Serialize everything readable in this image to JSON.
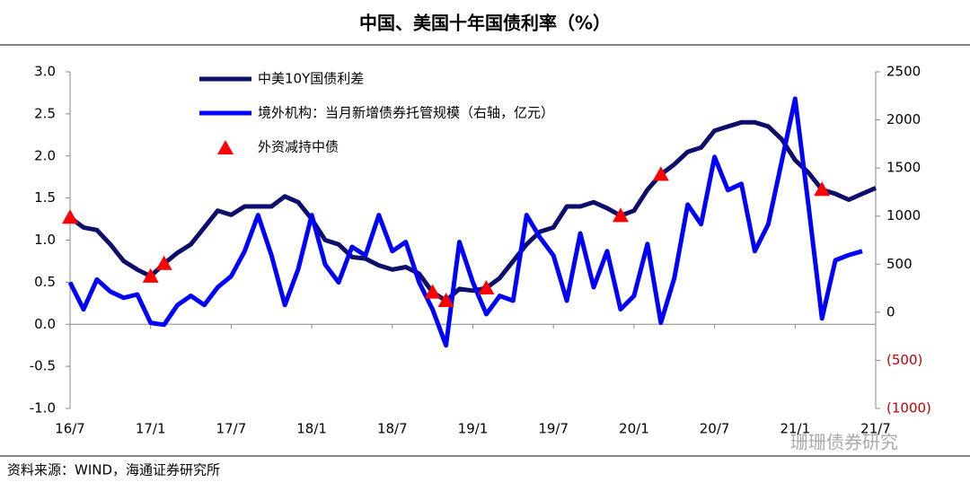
{
  "chart_data": {
    "type": "line",
    "title": "中国、美国十年国债利率（%）",
    "source": "资料来源：WIND，海通证券研究所",
    "watermark": "珊珊债券研究",
    "categories": [
      "16/7",
      null,
      null,
      null,
      null,
      null,
      "17/1",
      null,
      null,
      null,
      null,
      null,
      "17/7",
      null,
      null,
      null,
      null,
      null,
      "18/1",
      null,
      null,
      null,
      null,
      null,
      "18/7",
      null,
      null,
      null,
      null,
      null,
      "19/1",
      null,
      null,
      null,
      null,
      null,
      "19/7",
      null,
      null,
      null,
      null,
      null,
      "20/1",
      null,
      null,
      null,
      null,
      null,
      "20/7",
      null,
      null,
      null,
      null,
      null,
      "21/1",
      null,
      null,
      null,
      null,
      null,
      "21/7"
    ],
    "ylim": [
      -1,
      3
    ],
    "yticks": [
      {
        "value": -1,
        "label": "-1.0"
      },
      -0.5,
      {
        "value": 0,
        "label": "0.0"
      },
      0.5,
      {
        "value": 1,
        "label": "1.0"
      },
      1.5,
      {
        "value": 2,
        "label": "2.0"
      },
      2.5,
      {
        "value": 3,
        "label": "3.0"
      }
    ],
    "y2lim": [
      -1000,
      2500
    ],
    "y2ticks": [
      {
        "value": -1000,
        "label": "(1000)"
      },
      {
        "value": -500,
        "label": "(500)"
      },
      0,
      500,
      1000,
      1500,
      2000,
      2500
    ],
    "y2_negative_label_color": "#c00000",
    "legend": "top-left",
    "series": [
      {
        "name": "中美10Y国债利差",
        "color": "#0d0d6b",
        "style": "line",
        "values": [
          1.27,
          1.15,
          1.12,
          0.95,
          0.75,
          0.65,
          0.57,
          0.72,
          0.85,
          0.95,
          1.15,
          1.35,
          1.3,
          1.4,
          1.4,
          1.4,
          1.52,
          1.45,
          1.25,
          1.0,
          0.95,
          0.8,
          0.78,
          0.7,
          0.65,
          0.68,
          0.6,
          0.38,
          0.28,
          0.42,
          0.4,
          0.43,
          0.55,
          0.75,
          0.95,
          1.1,
          1.15,
          1.4,
          1.4,
          1.45,
          1.38,
          1.29,
          1.35,
          1.6,
          1.78,
          1.9,
          2.05,
          2.1,
          2.3,
          2.35,
          2.4,
          2.4,
          2.35,
          2.2,
          1.95,
          1.8,
          1.6,
          1.55,
          1.48,
          1.55,
          1.62
        ]
      },
      {
        "name": "境外机构：当月新增债券托管规模（右轴，亿元）",
        "color": "#0000ff",
        "style": "line",
        "axis": "y2",
        "values": [
          310,
          30,
          340,
          215,
          150,
          185,
          -110,
          -130,
          75,
          170,
          75,
          260,
          375,
          635,
          1010,
          590,
          75,
          450,
          1010,
          495,
          310,
          680,
          590,
          1010,
          635,
          730,
          310,
          30,
          -345,
          730,
          310,
          -20,
          170,
          120,
          1010,
          775,
          590,
          120,
          820,
          260,
          635,
          30,
          170,
          710,
          -110,
          355,
          1120,
          915,
          1615,
          1270,
          1335,
          635,
          915,
          1565,
          2220,
          1100,
          -65,
          540,
          595,
          635,
          null
        ]
      },
      {
        "name": "外资减持中债",
        "color": "#ff0000",
        "style": "markers",
        "values": [
          1.27,
          null,
          null,
          null,
          null,
          null,
          0.57,
          0.72,
          null,
          null,
          null,
          null,
          null,
          null,
          null,
          null,
          null,
          null,
          null,
          null,
          null,
          null,
          null,
          null,
          null,
          null,
          null,
          0.38,
          0.28,
          null,
          null,
          0.43,
          null,
          null,
          null,
          null,
          null,
          null,
          null,
          null,
          null,
          1.29,
          null,
          null,
          1.78,
          null,
          null,
          null,
          null,
          null,
          null,
          null,
          null,
          null,
          null,
          null,
          1.6,
          null,
          null,
          null,
          null
        ]
      }
    ]
  }
}
